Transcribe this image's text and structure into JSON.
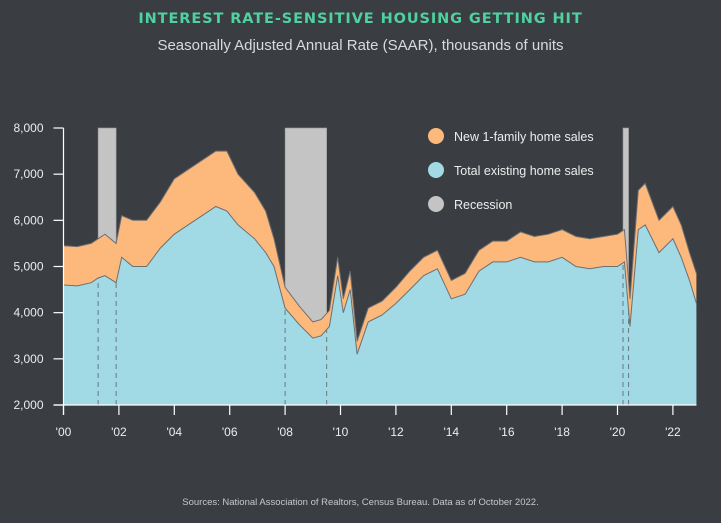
{
  "chart_data": {
    "type": "area",
    "stacked": true,
    "title": "INTEREST RATE-SENSITIVE HOUSING GETTING HIT",
    "subtitle": "Seasonally Adjusted Annual Rate (SAAR), thousands of units",
    "xlabel": "",
    "ylabel": "",
    "xlim": [
      2000,
      2022.85
    ],
    "ylim": [
      2000,
      8000
    ],
    "y_ticks": [
      2000,
      3000,
      4000,
      5000,
      6000,
      7000,
      8000
    ],
    "y_tick_labels": [
      "2,000",
      "3,000",
      "4,000",
      "5,000",
      "6,000",
      "7,000",
      "8,000"
    ],
    "x_ticks": [
      2000,
      2002,
      2004,
      2006,
      2008,
      2010,
      2012,
      2014,
      2016,
      2018,
      2020,
      2022
    ],
    "x_tick_labels": [
      "'00",
      "'02",
      "'04",
      "'06",
      "'08",
      "'10",
      "'12",
      "'14",
      "'16",
      "'18",
      "'20",
      "'22"
    ],
    "grid": false,
    "legend_position": "top-right",
    "x": [
      2000.0,
      2000.5,
      2001.0,
      2001.25,
      2001.5,
      2001.9,
      2002.1,
      2002.5,
      2003.0,
      2003.5,
      2004.0,
      2004.5,
      2005.0,
      2005.5,
      2005.9,
      2006.3,
      2006.9,
      2007.3,
      2007.6,
      2008.0,
      2008.5,
      2009.0,
      2009.3,
      2009.6,
      2009.9,
      2010.1,
      2010.35,
      2010.6,
      2011.0,
      2011.5,
      2012.0,
      2012.5,
      2013.0,
      2013.5,
      2014.0,
      2014.5,
      2015.0,
      2015.5,
      2016.0,
      2016.5,
      2017.0,
      2017.5,
      2018.0,
      2018.5,
      2019.0,
      2019.5,
      2020.0,
      2020.25,
      2020.45,
      2020.75,
      2021.0,
      2021.5,
      2022.0,
      2022.3,
      2022.6,
      2022.85
    ],
    "series": [
      {
        "name": "Total existing home sales",
        "color": "#a1d9e5",
        "values": [
          4600,
          4580,
          4650,
          4750,
          4800,
          4650,
          5200,
          5000,
          5000,
          5400,
          5700,
          5900,
          6100,
          6300,
          6200,
          5900,
          5600,
          5300,
          5000,
          4100,
          3750,
          3450,
          3500,
          3700,
          4800,
          4000,
          4500,
          3100,
          3800,
          3950,
          4200,
          4500,
          4800,
          4950,
          4300,
          4400,
          4900,
          5100,
          5100,
          5200,
          5100,
          5100,
          5200,
          5000,
          4950,
          5000,
          5000,
          5100,
          3700,
          5800,
          5900,
          5300,
          5600,
          5200,
          4700,
          4200
        ]
      },
      {
        "name": "New 1-family home sales",
        "color": "#fdb97b",
        "values": [
          850,
          850,
          850,
          850,
          900,
          850,
          900,
          1000,
          1000,
          1000,
          1200,
          1200,
          1200,
          1200,
          1300,
          1100,
          1000,
          900,
          600,
          450,
          400,
          350,
          350,
          350,
          400,
          300,
          400,
          280,
          300,
          300,
          350,
          400,
          400,
          400,
          400,
          450,
          450,
          450,
          450,
          550,
          550,
          600,
          600,
          650,
          650,
          650,
          700,
          700,
          600,
          850,
          900,
          700,
          700,
          700,
          600,
          650
        ]
      }
    ],
    "recessions": [
      {
        "start": 2001.25,
        "end": 2001.9
      },
      {
        "start": 2008.0,
        "end": 2009.5
      },
      {
        "start": 2020.2,
        "end": 2020.4
      }
    ],
    "legend": [
      {
        "label": "New 1-family home sales",
        "color": "#fdb97b"
      },
      {
        "label": "Total existing home sales",
        "color": "#a1d9e5"
      },
      {
        "label": "Recession",
        "color": "#c4c4c4"
      }
    ],
    "source": "Sources: National Association of Realtors, Census Bureau. Data as of October 2022."
  }
}
